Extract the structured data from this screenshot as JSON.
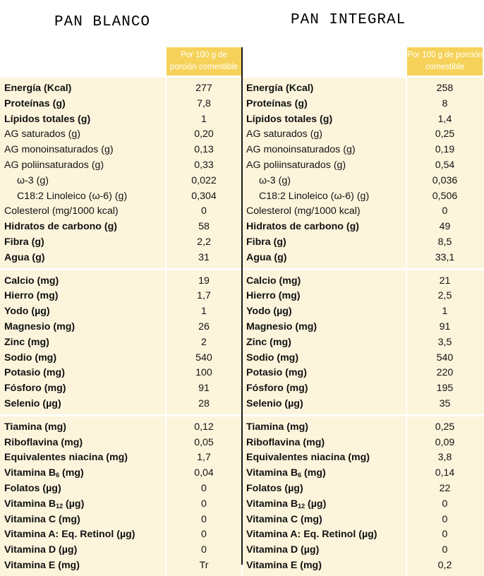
{
  "titles": {
    "left": "PAN BLANCO",
    "right": "PAN INTEGRAL"
  },
  "header_label": "Por 100 g de porción comestible",
  "colors": {
    "header": "#f6d25a",
    "band": "#fdf4dc",
    "divider": "#1a1a1a"
  },
  "left": {
    "groups": [
      [
        {
          "label": "Energía (Kcal)",
          "value": "277",
          "bold": true
        },
        {
          "label": "Proteínas (g)",
          "value": "7,8",
          "bold": true
        },
        {
          "label": "Lípidos totales (g)",
          "value": "1",
          "bold": true
        },
        {
          "label": "AG saturados (g)",
          "value": "0,20"
        },
        {
          "label": "AG monoinsaturados (g)",
          "value": "0,13"
        },
        {
          "label": "AG poliinsaturados (g)",
          "value": "0,33"
        },
        {
          "label": "ω-3 (g)",
          "value": "0,022",
          "indent": true
        },
        {
          "label": "C18:2 Linoleico (ω-6) (g)",
          "value": "0,304",
          "indent": true
        },
        {
          "label": "Colesterol (mg/1000 kcal)",
          "value": "0"
        },
        {
          "label": "Hidratos de carbono (g)",
          "value": "58",
          "bold": true
        },
        {
          "label": "Fibra (g)",
          "value": "2,2",
          "bold": true
        },
        {
          "label": "Agua (g)",
          "value": "31",
          "bold": true
        }
      ],
      [
        {
          "label": "Calcio (mg)",
          "value": "19",
          "bold": true
        },
        {
          "label": "Hierro (mg)",
          "value": "1,7",
          "bold": true
        },
        {
          "label": "Yodo (µg)",
          "value": "1",
          "bold": true
        },
        {
          "label": "Magnesio (mg)",
          "value": "26",
          "bold": true
        },
        {
          "label": "Zinc (mg)",
          "value": "2",
          "bold": true
        },
        {
          "label": "Sodio (mg)",
          "value": "540",
          "bold": true
        },
        {
          "label": "Potasio (mg)",
          "value": "100",
          "bold": true
        },
        {
          "label": "Fósforo (mg)",
          "value": "91",
          "bold": true
        },
        {
          "label": "Selenio (µg)",
          "value": "28",
          "bold": true
        }
      ],
      [
        {
          "label": "Tiamina (mg)",
          "value": "0,12",
          "bold": true
        },
        {
          "label": "Riboflavina (mg)",
          "value": "0,05",
          "bold": true
        },
        {
          "label": "Equivalentes niacina (mg)",
          "value": "1,7",
          "bold": true
        },
        {
          "label": "Vitamina B",
          "sub": "6",
          "suffix": " (mg)",
          "value": "0,04",
          "bold": true
        },
        {
          "label": "Folatos (µg)",
          "value": "0",
          "bold": true
        },
        {
          "label": "Vitamina B",
          "sub": "12",
          "suffix": " (µg)",
          "value": "0",
          "bold": true
        },
        {
          "label": "Vitamina C (mg)",
          "value": "0",
          "bold": true
        },
        {
          "label": "Vitamina A: Eq. Retinol (µg)",
          "value": "0",
          "bold": true
        },
        {
          "label": "Vitamina D (µg)",
          "value": "0",
          "bold": true
        },
        {
          "label": "Vitamina E (mg)",
          "value": "Tr",
          "bold": true
        }
      ]
    ]
  },
  "right": {
    "groups": [
      [
        {
          "label": "Energía (Kcal)",
          "value": "258",
          "bold": true
        },
        {
          "label": "Proteínas (g)",
          "value": "8",
          "bold": true
        },
        {
          "label": "Lípidos totales (g)",
          "value": "1,4",
          "bold": true
        },
        {
          "label": "AG saturados (g)",
          "value": "0,25"
        },
        {
          "label": "AG monoinsaturados (g)",
          "value": "0,19"
        },
        {
          "label": "AG poliinsaturados (g)",
          "value": "0,54"
        },
        {
          "label": "ω-3 (g)",
          "value": "0,036",
          "indent": true
        },
        {
          "label": "C18:2 Linoleico (ω-6) (g)",
          "value": "0,506",
          "indent": true
        },
        {
          "label": "Colesterol (mg/1000 kcal)",
          "value": "0"
        },
        {
          "label": "Hidratos de carbono (g)",
          "value": "49",
          "bold": true
        },
        {
          "label": "Fibra (g)",
          "value": "8,5",
          "bold": true
        },
        {
          "label": "Agua (g)",
          "value": "33,1",
          "bold": true
        }
      ],
      [
        {
          "label": "Calcio (mg)",
          "value": "21",
          "bold": true
        },
        {
          "label": "Hierro (mg)",
          "value": "2,5",
          "bold": true
        },
        {
          "label": "Yodo (µg)",
          "value": "1",
          "bold": true
        },
        {
          "label": "Magnesio (mg)",
          "value": "91",
          "bold": true
        },
        {
          "label": "Zinc (mg)",
          "value": "3,5",
          "bold": true
        },
        {
          "label": "Sodio (mg)",
          "value": "540",
          "bold": true
        },
        {
          "label": "Potasio (mg)",
          "value": "220",
          "bold": true
        },
        {
          "label": "Fósforo (mg)",
          "value": "195",
          "bold": true
        },
        {
          "label": "Selenio (µg)",
          "value": "35",
          "bold": true
        }
      ],
      [
        {
          "label": "Tiamina (mg)",
          "value": "0,25",
          "bold": true
        },
        {
          "label": "Riboflavina (mg)",
          "value": "0,09",
          "bold": true
        },
        {
          "label": "Equivalentes niacina (mg)",
          "value": "3,8",
          "bold": true
        },
        {
          "label": "Vitamina B",
          "sub": "6",
          "suffix": " (mg)",
          "value": "0,14",
          "bold": true
        },
        {
          "label": "Folatos (µg)",
          "value": "22",
          "bold": true
        },
        {
          "label": "Vitamina B",
          "sub": "12",
          "suffix": " (µg)",
          "value": "0",
          "bold": true
        },
        {
          "label": "Vitamina C (mg)",
          "value": "0",
          "bold": true
        },
        {
          "label": "Vitamina A: Eq. Retinol (µg)",
          "value": "0",
          "bold": true
        },
        {
          "label": "Vitamina D (µg)",
          "value": "0",
          "bold": true
        },
        {
          "label": "Vitamina E (mg)",
          "value": "0,2",
          "bold": true
        }
      ]
    ]
  }
}
